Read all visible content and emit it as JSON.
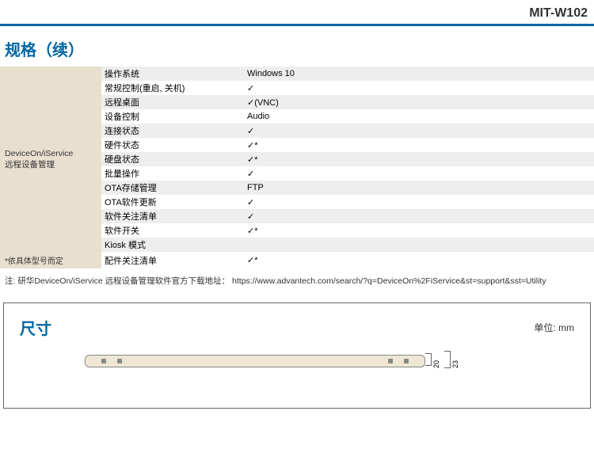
{
  "product_title": "MIT-W102",
  "section_title": "规格（续）",
  "sidebar": {
    "group_label_line1": "DeviceOn/iService",
    "group_label_line2": "远程设备管理",
    "footnote": "*依具体型号而定"
  },
  "rows": [
    {
      "label": "操作系统",
      "value": "Windows 10",
      "alt": true
    },
    {
      "label": "常规控制(重启, 关机)",
      "value": "✓",
      "alt": false
    },
    {
      "label": "远程桌面",
      "value": "✓(VNC)",
      "alt": true
    },
    {
      "label": "设备控制",
      "value": "Audio",
      "alt": false
    },
    {
      "label": "连接状态",
      "value": "✓",
      "alt": true
    },
    {
      "label": "硬件状态",
      "value": "✓*",
      "alt": false
    },
    {
      "label": "硬盘状态",
      "value": "✓*",
      "alt": true
    },
    {
      "label": "批量操作",
      "value": "✓",
      "alt": false
    },
    {
      "label": "OTA存储管理",
      "value": "FTP",
      "alt": true
    },
    {
      "label": "OTA软件更新",
      "value": "✓",
      "alt": false
    },
    {
      "label": "软件关注清单",
      "value": "✓",
      "alt": true
    },
    {
      "label": "软件开关",
      "value": "✓*",
      "alt": false
    },
    {
      "label": "Kiosk 模式",
      "value": "",
      "alt": true
    },
    {
      "label": "配件关注清单",
      "value": "✓*",
      "alt": false
    }
  ],
  "note": {
    "prefix": "注: 研华DeviceOn/iService 远程设备管理软件官方下载地址：",
    "url": "https://www.advantech.com/search/?q=DeviceOn%2FiService&st=support&sst=Utility"
  },
  "dimensions": {
    "title": "尺寸",
    "unit_label": "单位: mm",
    "inner_height": "20",
    "outer_height": "23"
  },
  "colors": {
    "brand_blue": "#0066a4",
    "sidebar_bg": "#e8dfcf",
    "row_alt_bg": "#eeeeee",
    "device_fill": "#efe7d4"
  }
}
